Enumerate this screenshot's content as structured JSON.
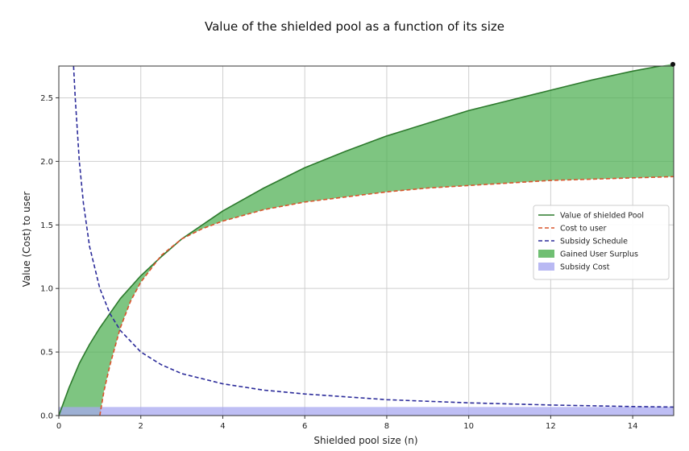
{
  "chart_data": {
    "type": "line",
    "title": "Value of the shielded pool as a function of its size",
    "xlabel": "Shielded pool size (n)",
    "ylabel": "Value (Cost) to user",
    "xlim": [
      0,
      15
    ],
    "ylim": [
      0,
      2.75
    ],
    "xticks": [
      "0",
      "2",
      "4",
      "6",
      "8",
      "10",
      "12",
      "14"
    ],
    "yticks": [
      "0.0",
      "0.5",
      "1.0",
      "1.5",
      "2.0",
      "2.5"
    ],
    "grid": true,
    "legend_position": "center-right",
    "series": [
      {
        "name": "Value of shielded Pool",
        "style": "solid",
        "color": "#2d7a2d",
        "x": [
          0,
          0.25,
          0.5,
          0.75,
          1,
          1.5,
          2,
          2.5,
          3,
          3.5,
          4,
          5,
          6,
          7,
          8,
          9,
          10,
          11,
          12,
          13,
          14,
          15
        ],
        "y": [
          0,
          0.22,
          0.41,
          0.56,
          0.69,
          0.92,
          1.1,
          1.25,
          1.39,
          1.5,
          1.61,
          1.79,
          1.95,
          2.08,
          2.2,
          2.3,
          2.4,
          2.48,
          2.56,
          2.64,
          2.71,
          2.77
        ]
      },
      {
        "name": "Cost to user",
        "style": "dashed",
        "color": "#d9532b",
        "x": [
          1,
          1.1,
          1.25,
          1.5,
          1.75,
          2,
          2.5,
          3,
          3.5,
          4,
          5,
          6,
          7,
          8,
          9,
          10,
          11,
          12,
          13,
          14,
          15
        ],
        "y": [
          0,
          0.19,
          0.4,
          0.69,
          0.9,
          1.05,
          1.26,
          1.39,
          1.47,
          1.53,
          1.62,
          1.68,
          1.72,
          1.76,
          1.79,
          1.81,
          1.83,
          1.85,
          1.86,
          1.87,
          1.88
        ]
      },
      {
        "name": "Subsidy Schedule",
        "style": "dashed",
        "color": "#2b2b9a",
        "x": [
          0.36,
          0.4,
          0.5,
          0.6,
          0.75,
          1,
          1.25,
          1.5,
          2,
          2.5,
          3,
          4,
          5,
          6,
          8,
          10,
          12,
          14,
          15
        ],
        "y": [
          2.75,
          2.5,
          2.0,
          1.67,
          1.33,
          1.0,
          0.8,
          0.67,
          0.5,
          0.4,
          0.33,
          0.25,
          0.2,
          0.17,
          0.125,
          0.1,
          0.083,
          0.071,
          0.067
        ]
      }
    ],
    "fills": [
      {
        "name": "Gained User Surplus",
        "color": "#4caf50",
        "between": [
          "Value of shielded Pool",
          "Cost to user"
        ],
        "x_range": [
          0,
          15
        ]
      },
      {
        "name": "Subsidy Cost",
        "color": "#a8a8f0",
        "y_range": [
          0,
          0.067
        ],
        "x_range": [
          0,
          15
        ]
      }
    ],
    "legend": [
      {
        "label": "Value of shielded Pool",
        "kind": "line",
        "style": "solid",
        "color": "#2d7a2d"
      },
      {
        "label": "Cost to user",
        "kind": "line",
        "style": "dashed",
        "color": "#d9532b"
      },
      {
        "label": "Subsidy Schedule",
        "kind": "line",
        "style": "dashed",
        "color": "#2b2b9a"
      },
      {
        "label": "Gained User Surplus",
        "kind": "patch",
        "color": "#4caf50"
      },
      {
        "label": "Subsidy Cost",
        "kind": "patch",
        "color": "#a8a8f0"
      }
    ]
  }
}
